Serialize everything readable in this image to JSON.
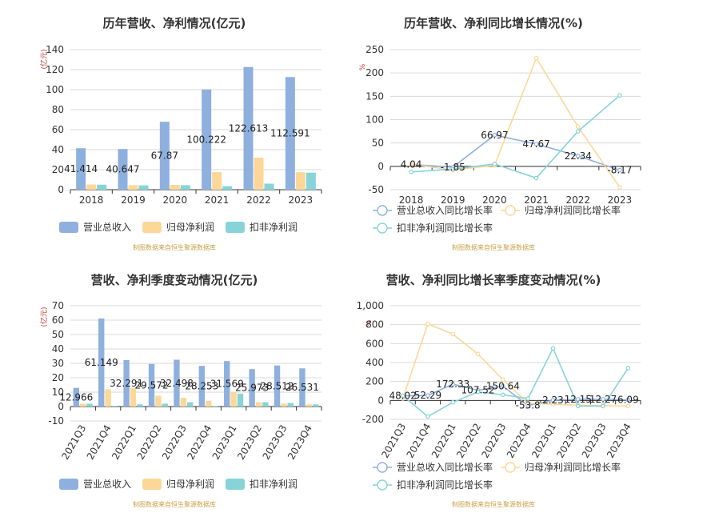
{
  "source_note": "制图数据来自恒生聚源数据库",
  "colors": {
    "revenue": "#8eb0de",
    "netprofit": "#fcd797",
    "deducted": "#86d4d8",
    "axis": "#333333",
    "grid": "#d9d9d9",
    "unit": "#c0392b",
    "source": "#c8a24a",
    "title": "#333333"
  },
  "chart_data": [
    {
      "id": "annual-bar",
      "type": "bar",
      "title": "历年营收、净利情况(亿元)",
      "ylabel": "(亿元)",
      "ylim": [
        0,
        140
      ],
      "yticks": [
        0,
        20,
        40,
        60,
        80,
        100,
        120,
        140
      ],
      "categories": [
        "2018",
        "2019",
        "2020",
        "2021",
        "2022",
        "2023"
      ],
      "series": [
        {
          "name": "营业总收入",
          "key": "revenue",
          "values": [
            41.414,
            40.647,
            67.87,
            100.222,
            122.613,
            112.591
          ],
          "labels": [
            "41.414",
            "40.647",
            "67.87",
            "100.222",
            "122.613",
            "112.591"
          ]
        },
        {
          "name": "归母净利润",
          "key": "netprofit",
          "values": [
            5.2,
            4.5,
            4.8,
            17.5,
            32.0,
            17.5
          ]
        },
        {
          "name": "扣非净利润",
          "key": "deducted",
          "values": [
            5.0,
            4.3,
            4.5,
            3.5,
            6.0,
            17.0
          ]
        }
      ],
      "legend": "bottom"
    },
    {
      "id": "annual-line",
      "type": "line",
      "title": "历年营收、净利同比增长情况(%)",
      "ylabel": "%",
      "ylim": [
        -50,
        250
      ],
      "yticks": [
        -50,
        0,
        50,
        100,
        150,
        200,
        250
      ],
      "categories": [
        "2018",
        "2019",
        "2020",
        "2021",
        "2022",
        "2023"
      ],
      "series": [
        {
          "name": "营业总收入同比增长率",
          "key": "revenue",
          "values": [
            4.04,
            -1.85,
            66.97,
            47.67,
            22.34,
            -8.17
          ],
          "labels": [
            "4.04",
            "-1.85",
            "66.97",
            "47.67",
            "22.34",
            "-8.17"
          ]
        },
        {
          "name": "归母净利润同比增长率",
          "key": "netprofit",
          "values": [
            5,
            -8,
            2,
            232,
            85,
            -45
          ]
        },
        {
          "name": "扣非净利润同比增长率",
          "key": "deducted",
          "values": [
            -12,
            -6,
            5,
            -25,
            75,
            152
          ]
        }
      ],
      "legend": "bottom"
    },
    {
      "id": "quarter-bar",
      "type": "bar",
      "title": "营收、净利季度变动情况(亿元)",
      "ylabel": "(亿元)",
      "ylim": [
        -10,
        70
      ],
      "yticks": [
        -10,
        0,
        10,
        20,
        30,
        40,
        50,
        60,
        70
      ],
      "categories": [
        "2021Q3",
        "2021Q4",
        "2022Q1",
        "2022Q2",
        "2022Q3",
        "2022Q4",
        "2023Q1",
        "2023Q2",
        "2023Q3",
        "2023Q4"
      ],
      "series": [
        {
          "name": "营业总收入",
          "key": "revenue",
          "values": [
            12.966,
            61.149,
            32.291,
            29.572,
            32.498,
            28.253,
            31.569,
            25.973,
            28.512,
            26.531
          ],
          "labels": [
            "12.966",
            "61.149",
            "32.291",
            "29.572",
            "32.498",
            "28.253",
            "31.569",
            "25.973",
            "28.512",
            "26.531"
          ]
        },
        {
          "name": "归母净利润",
          "key": "netprofit",
          "values": [
            2.0,
            12.0,
            13.0,
            7.5,
            6.0,
            4.0,
            10.0,
            3.0,
            2.0,
            1.5
          ]
        },
        {
          "name": "扣非净利润",
          "key": "deducted",
          "values": [
            2.0,
            0.5,
            1.5,
            2.0,
            3.0,
            0.3,
            9.0,
            3.0,
            2.5,
            1.5
          ]
        }
      ],
      "legend": "bottom"
    },
    {
      "id": "quarter-line",
      "type": "line",
      "title": "营收、净利同比增长率季度变动情况(%)",
      "ylabel": "%",
      "ylim": [
        -200,
        1000
      ],
      "yticks": [
        -200,
        0,
        200,
        400,
        600,
        800,
        1000
      ],
      "ytick_labels": [
        "-200",
        "0",
        "200",
        "400",
        "600",
        "800",
        "1,000"
      ],
      "categories": [
        "2021Q3",
        "2021Q4",
        "2022Q1",
        "2022Q2",
        "2022Q3",
        "2022Q4",
        "2023Q1",
        "2023Q2",
        "2023Q3",
        "2023Q4"
      ],
      "series": [
        {
          "name": "营业总收入同比增长率",
          "key": "revenue",
          "values": [
            48.02,
            52.29,
            172.33,
            107.52,
            150.64,
            -53.8,
            2.23,
            12.15,
            12.27,
            6.09
          ],
          "labels": [
            "48.02",
            "52.29",
            "172.33",
            "107.52",
            "150.64",
            "-53.8",
            "2.23",
            "12.15",
            "12.27",
            "6.09"
          ]
        },
        {
          "name": "归母净利润同比增长率",
          "key": "netprofit",
          "values": [
            20,
            810,
            700,
            490,
            220,
            -30,
            -40,
            -50,
            -55,
            -60
          ]
        },
        {
          "name": "扣非净利润同比增长率",
          "key": "deducted",
          "values": [
            50,
            -170,
            -20,
            90,
            60,
            20,
            550,
            -60,
            -60,
            340
          ]
        }
      ],
      "legend": "bottom"
    }
  ]
}
